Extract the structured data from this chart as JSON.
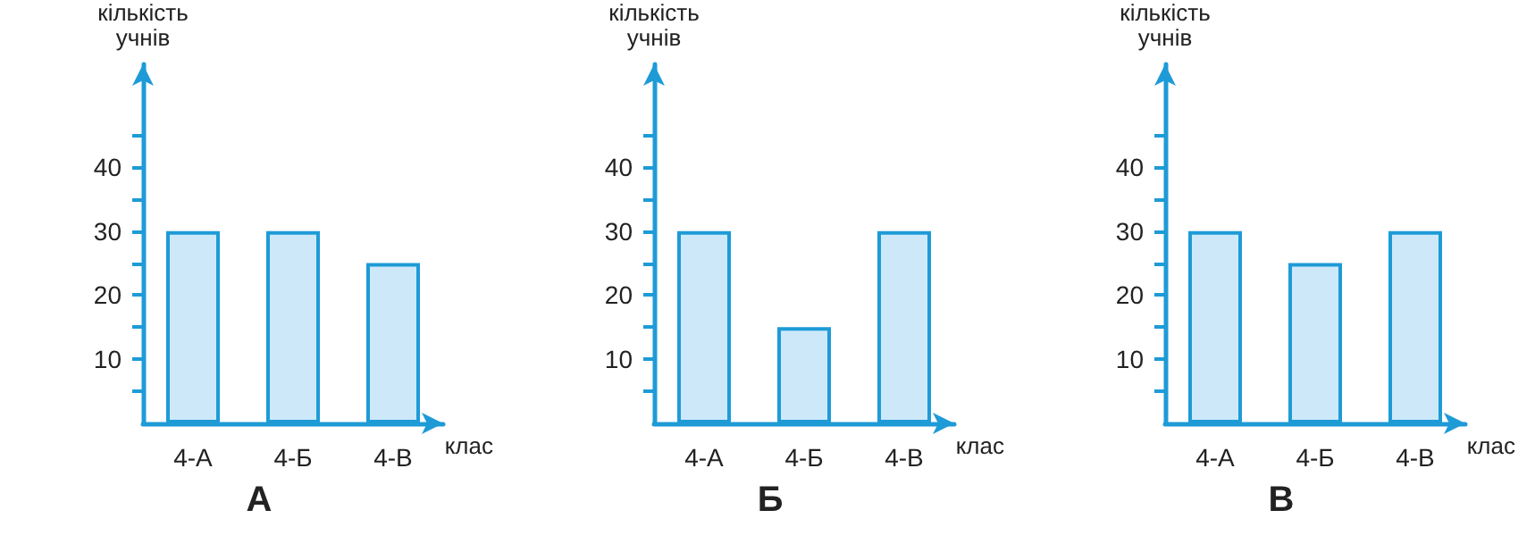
{
  "chart_data": [
    {
      "type": "bar",
      "title": "А",
      "xlabel": "клас",
      "ylabel": "кількість\nучнів",
      "categories": [
        "4-А",
        "4-Б",
        "4-В"
      ],
      "values": [
        30,
        30,
        25
      ],
      "color": "#cde9f9",
      "ylim": [
        0,
        56
      ],
      "yticks": [
        {
          "value": 5,
          "label": null
        },
        10,
        {
          "value": 15,
          "label": null
        },
        20,
        {
          "value": 25,
          "label": null
        },
        30,
        {
          "value": 35,
          "label": null
        },
        40,
        {
          "value": 45,
          "label": null
        }
      ],
      "grid": false
    },
    {
      "type": "bar",
      "title": "Б",
      "xlabel": "клас",
      "ylabel": "кількість\nучнів",
      "categories": [
        "4-А",
        "4-Б",
        "4-В"
      ],
      "values": [
        30,
        15,
        30
      ],
      "color": "#cde9f9",
      "ylim": [
        0,
        56
      ],
      "yticks": [
        {
          "value": 5,
          "label": null
        },
        10,
        {
          "value": 15,
          "label": null
        },
        20,
        {
          "value": 25,
          "label": null
        },
        30,
        {
          "value": 35,
          "label": null
        },
        40,
        {
          "value": 45,
          "label": null
        }
      ],
      "grid": false
    },
    {
      "type": "bar",
      "title": "В",
      "xlabel": "клас",
      "ylabel": "кількість\nучнів",
      "categories": [
        "4-А",
        "4-Б",
        "4-В"
      ],
      "values": [
        30,
        25,
        30
      ],
      "color": "#cde9f9",
      "ylim": [
        0,
        56
      ],
      "yticks": [
        {
          "value": 5,
          "label": null
        },
        10,
        {
          "value": 15,
          "label": null
        },
        20,
        {
          "value": 25,
          "label": null
        },
        30,
        {
          "value": 35,
          "label": null
        },
        40,
        {
          "value": 45,
          "label": null
        }
      ],
      "grid": false
    }
  ]
}
